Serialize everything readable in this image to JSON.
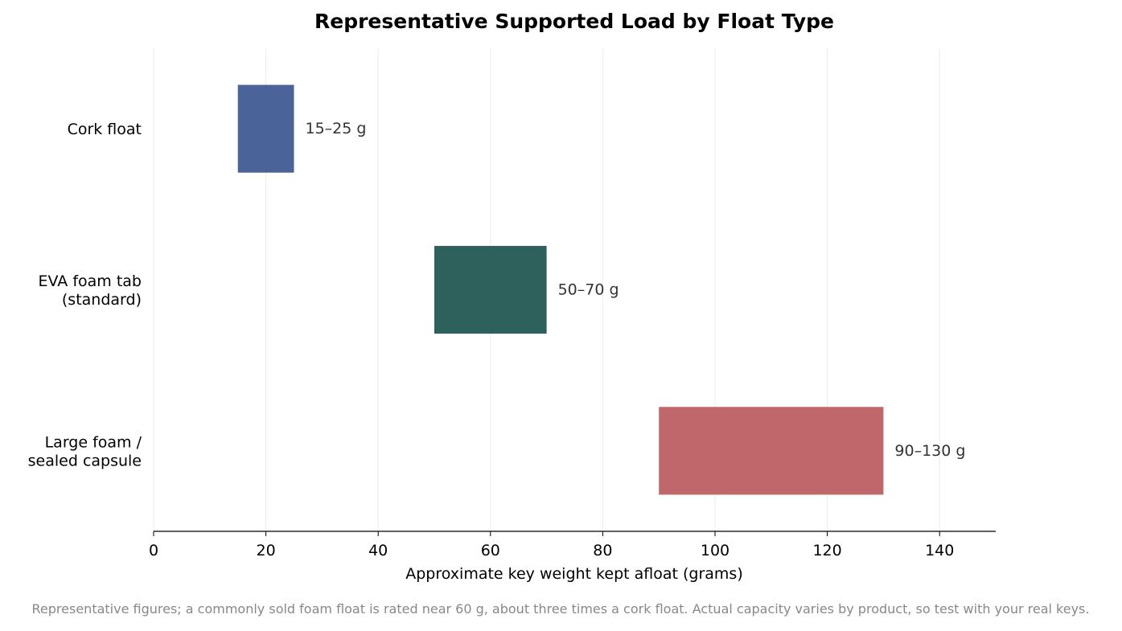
{
  "chart_data": {
    "type": "bar",
    "orientation": "horizontal",
    "title": "Representative Supported Load by Float Type",
    "xlabel": "Approximate key weight kept afloat (grams)",
    "ylabel": "",
    "xlim": [
      0,
      150
    ],
    "xticks": [
      0,
      20,
      40,
      60,
      80,
      100,
      120,
      140
    ],
    "grid": "vertical",
    "categories": [
      {
        "lines": [
          "Cork float"
        ],
        "range": [
          15,
          25
        ],
        "label": "15–25 g",
        "color": "#4a6399"
      },
      {
        "lines": [
          "EVA foam tab",
          "(standard)"
        ],
        "range": [
          50,
          70
        ],
        "label": "50–70 g",
        "color": "#2e605c"
      },
      {
        "lines": [
          "Large foam /",
          "sealed capsule"
        ],
        "range": [
          90,
          130
        ],
        "label": "90–130 g",
        "color": "#c0676b"
      }
    ],
    "footnote": "Representative figures; a commonly sold foam float is rated near 60 g, about three times a cork float. Actual capacity varies by product, so test with your real keys."
  }
}
